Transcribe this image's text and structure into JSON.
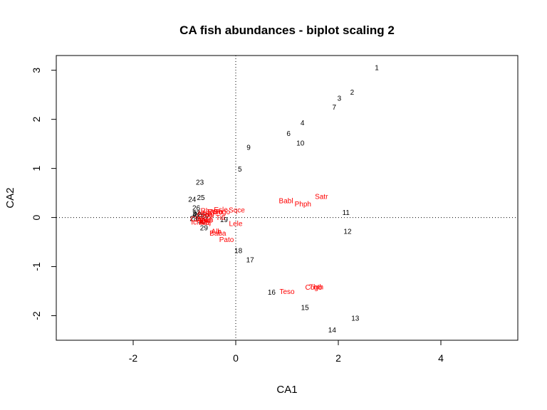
{
  "chart_data": {
    "type": "scatter",
    "title": "CA fish abundances - biplot scaling 2",
    "xlabel": "CA1",
    "ylabel": "CA2",
    "xlim": [
      -3.5,
      5.5
    ],
    "ylim": [
      -2.5,
      3.3
    ],
    "xticks": [
      -2,
      0,
      2,
      4
    ],
    "yticks": [
      -2,
      -1,
      0,
      1,
      2,
      3
    ],
    "reference_lines": {
      "x": 0,
      "y": 0,
      "style": "dotted"
    },
    "grid": false,
    "colors": {
      "sites": "#000000",
      "species": "#ff0000"
    },
    "sites": [
      {
        "label": "1",
        "x": 2.75,
        "y": 3.05
      },
      {
        "label": "2",
        "x": 2.27,
        "y": 2.55
      },
      {
        "label": "3",
        "x": 2.02,
        "y": 2.43
      },
      {
        "label": "4",
        "x": 1.3,
        "y": 1.93
      },
      {
        "label": "5",
        "x": 0.08,
        "y": 0.99
      },
      {
        "label": "6",
        "x": 1.03,
        "y": 1.71
      },
      {
        "label": "7",
        "x": 1.92,
        "y": 2.25
      },
      {
        "label": "8",
        "x": -0.8,
        "y": 0.07
      },
      {
        "label": "9",
        "x": 0.25,
        "y": 1.43
      },
      {
        "label": "10",
        "x": 1.26,
        "y": 1.52
      },
      {
        "label": "11",
        "x": 2.15,
        "y": 0.1
      },
      {
        "label": "12",
        "x": 2.18,
        "y": -0.28
      },
      {
        "label": "13",
        "x": 2.33,
        "y": -2.05
      },
      {
        "label": "14",
        "x": 1.88,
        "y": -2.29
      },
      {
        "label": "15",
        "x": 1.35,
        "y": -1.83
      },
      {
        "label": "16",
        "x": 0.7,
        "y": -1.52
      },
      {
        "label": "17",
        "x": 0.28,
        "y": -0.86
      },
      {
        "label": "18",
        "x": 0.05,
        "y": -0.67
      },
      {
        "label": "19",
        "x": -0.23,
        "y": -0.04
      },
      {
        "label": "20",
        "x": -0.6,
        "y": 0.04
      },
      {
        "label": "21",
        "x": -0.7,
        "y": 0.03
      },
      {
        "label": "22",
        "x": -0.75,
        "y": 0.07
      },
      {
        "label": "23",
        "x": -0.7,
        "y": 0.72
      },
      {
        "label": "24",
        "x": -0.85,
        "y": 0.37
      },
      {
        "label": "25",
        "x": -0.68,
        "y": 0.41
      },
      {
        "label": "26",
        "x": -0.77,
        "y": 0.2
      },
      {
        "label": "27",
        "x": -0.77,
        "y": 0.09
      },
      {
        "label": "28",
        "x": -0.82,
        "y": -0.02
      },
      {
        "label": "29",
        "x": -0.62,
        "y": -0.21
      },
      {
        "label": "30",
        "x": -0.66,
        "y": -0.07
      }
    ],
    "species": [
      {
        "label": "Cogo",
        "x": 1.52,
        "y": -1.42
      },
      {
        "label": "Thth",
        "x": 1.57,
        "y": -1.41
      },
      {
        "label": "Teso",
        "x": 1.0,
        "y": -1.51
      },
      {
        "label": "Satr",
        "x": 1.67,
        "y": 0.43
      },
      {
        "label": "Phph",
        "x": 1.31,
        "y": 0.28
      },
      {
        "label": "Babl",
        "x": 0.98,
        "y": 0.34
      },
      {
        "label": "Lele",
        "x": 0.0,
        "y": -0.12
      },
      {
        "label": "Sqce",
        "x": 0.02,
        "y": 0.15
      },
      {
        "label": "Esle",
        "x": -0.29,
        "y": 0.16
      },
      {
        "label": "Gogo",
        "x": -0.28,
        "y": 0.12
      },
      {
        "label": "Ruru",
        "x": -0.4,
        "y": 0.12
      },
      {
        "label": "Rham",
        "x": -0.5,
        "y": 0.14
      },
      {
        "label": "Legi",
        "x": -0.6,
        "y": 0.1
      },
      {
        "label": "Scer",
        "x": -0.55,
        "y": 0.07
      },
      {
        "label": "Cyca",
        "x": -0.6,
        "y": 0.05
      },
      {
        "label": "Titi",
        "x": -0.3,
        "y": 0.0
      },
      {
        "label": "Anan",
        "x": -0.6,
        "y": -0.04
      },
      {
        "label": "Chna",
        "x": -0.72,
        "y": -0.03
      },
      {
        "label": "Pefl",
        "x": -0.58,
        "y": -0.06
      },
      {
        "label": "Icme",
        "x": -0.72,
        "y": -0.09
      },
      {
        "label": "Blbj",
        "x": -0.6,
        "y": -0.09
      },
      {
        "label": "Alal",
        "x": -0.6,
        "y": -0.1
      },
      {
        "label": "Pato",
        "x": -0.18,
        "y": -0.45
      },
      {
        "label": "Alb",
        "x": -0.38,
        "y": -0.28
      },
      {
        "label": "Baba",
        "x": -0.35,
        "y": -0.32
      }
    ]
  }
}
